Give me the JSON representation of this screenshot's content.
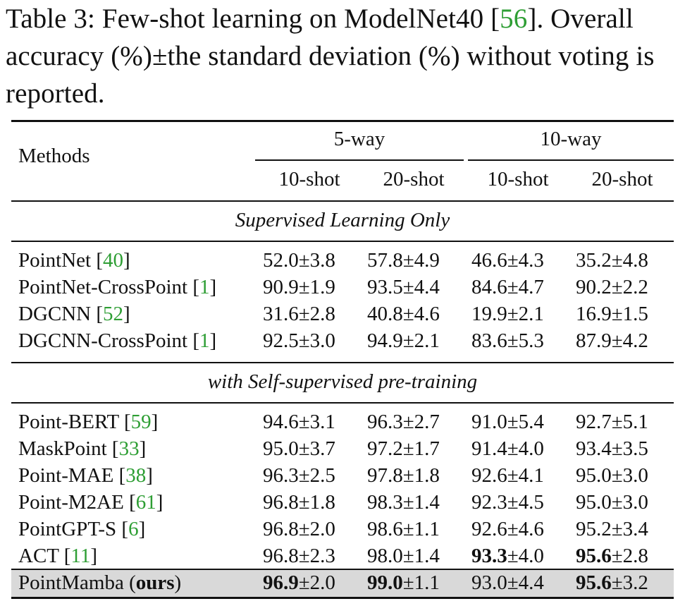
{
  "caption": {
    "table_label": "Table 3:",
    "text_1": " Few-shot learning on ModelNet40 [",
    "cite": "56",
    "text_2": "]. Overall accuracy (%)±the standard deviation (%) without voting is reported."
  },
  "header": {
    "methods": "Methods",
    "group_5way": "5-way",
    "group_10way": "10-way",
    "shots": [
      "10-shot",
      "20-shot",
      "10-shot",
      "20-shot"
    ]
  },
  "sections": {
    "supervised": "Supervised Learning Only",
    "selfsup": "with Self-supervised pre-training"
  },
  "rows_supervised": [
    {
      "name": "PointNet [",
      "ref": "40",
      "close": "]",
      "vals": [
        [
          "52.0",
          "±3.8"
        ],
        [
          "57.8",
          "±4.9"
        ],
        [
          "46.6",
          "±4.3"
        ],
        [
          "35.2",
          "±4.8"
        ]
      ]
    },
    {
      "name": "PointNet-CrossPoint [",
      "ref": "1",
      "close": "]",
      "vals": [
        [
          "90.9",
          "±1.9"
        ],
        [
          "93.5",
          "±4.4"
        ],
        [
          "84.6",
          "±4.7"
        ],
        [
          "90.2",
          "±2.2"
        ]
      ]
    },
    {
      "name": "DGCNN [",
      "ref": "52",
      "close": "]",
      "vals": [
        [
          "31.6",
          "±2.8"
        ],
        [
          "40.8",
          "±4.6"
        ],
        [
          "19.9",
          "±2.1"
        ],
        [
          "16.9",
          "±1.5"
        ]
      ]
    },
    {
      "name": "DGCNN-CrossPoint [",
      "ref": "1",
      "close": "]",
      "vals": [
        [
          "92.5",
          "±3.0"
        ],
        [
          "94.9",
          "±2.1"
        ],
        [
          "83.6",
          "±5.3"
        ],
        [
          "87.9",
          "±4.2"
        ]
      ]
    }
  ],
  "rows_selfsup": [
    {
      "name": "Point-BERT [",
      "ref": "59",
      "close": "]",
      "vals": [
        [
          "94.6",
          "±3.1"
        ],
        [
          "96.3",
          "±2.7"
        ],
        [
          "91.0",
          "±5.4"
        ],
        [
          "92.7",
          "±5.1"
        ]
      ]
    },
    {
      "name": "MaskPoint [",
      "ref": "33",
      "close": "]",
      "vals": [
        [
          "95.0",
          "±3.7"
        ],
        [
          "97.2",
          "±1.7"
        ],
        [
          "91.4",
          "±4.0"
        ],
        [
          "93.4",
          "±3.5"
        ]
      ]
    },
    {
      "name": "Point-MAE [",
      "ref": "38",
      "close": "]",
      "vals": [
        [
          "96.3",
          "±2.5"
        ],
        [
          "97.8",
          "±1.8"
        ],
        [
          "92.6",
          "±4.1"
        ],
        [
          "95.0",
          "±3.0"
        ]
      ]
    },
    {
      "name": "Point-M2AE [",
      "ref": "61",
      "close": "]",
      "vals": [
        [
          "96.8",
          "±1.8"
        ],
        [
          "98.3",
          "±1.4"
        ],
        [
          "92.3",
          "±4.5"
        ],
        [
          "95.0",
          "±3.0"
        ]
      ]
    },
    {
      "name": "PointGPT-S [",
      "ref": "6",
      "close": "]",
      "vals": [
        [
          "96.8",
          "±2.0"
        ],
        [
          "98.6",
          "±1.1"
        ],
        [
          "92.6",
          "±4.6"
        ],
        [
          "95.2",
          "±3.4"
        ]
      ]
    },
    {
      "name": "ACT [",
      "ref": "11",
      "close": "]",
      "vals": [
        [
          "96.8",
          "±2.3"
        ],
        [
          "98.0",
          "±1.4"
        ],
        [
          "93.3",
          "±4.0"
        ],
        [
          "95.6",
          "±2.8"
        ]
      ],
      "bold": [
        false,
        false,
        true,
        true
      ]
    }
  ],
  "ours": {
    "name": "PointMamba (",
    "bold_part": "ours",
    "close": ")",
    "vals": [
      [
        "96.9",
        "±2.0"
      ],
      [
        "99.0",
        "±1.1"
      ],
      [
        "93.0",
        "±4.4"
      ],
      [
        "95.6",
        "±3.2"
      ]
    ],
    "bold": [
      true,
      true,
      false,
      true
    ]
  },
  "colors": {
    "cite": "#2e9e34",
    "highlight": "#d9d9d9"
  }
}
